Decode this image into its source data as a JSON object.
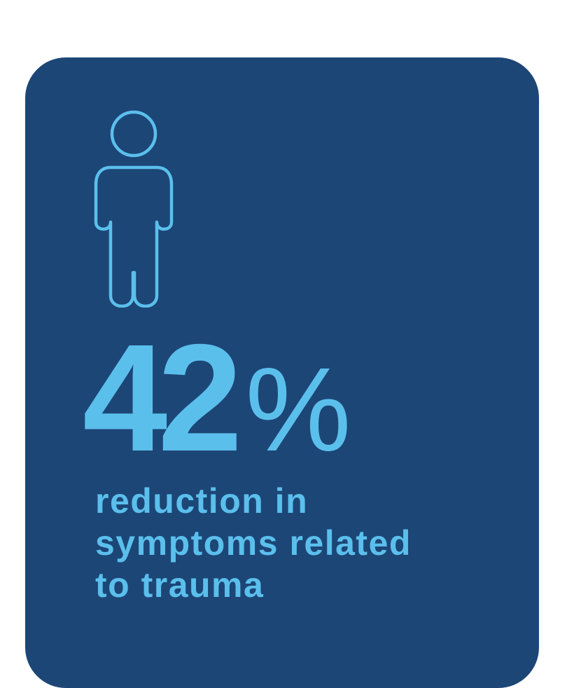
{
  "card": {
    "icon": "person-outline-icon",
    "stat": {
      "number": "42",
      "unit": "%"
    },
    "caption_lines": [
      "reduction in",
      "symptoms related",
      "to trauma"
    ]
  },
  "colors": {
    "card_background": "#1c4676",
    "accent": "#5bbfec",
    "page_background": "#ffffff"
  }
}
